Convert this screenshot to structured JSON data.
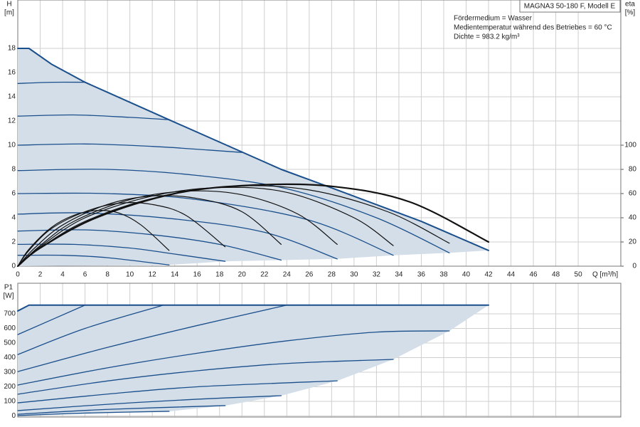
{
  "chart_data": [
    {
      "type": "line",
      "title": "MAGNA3 50-180 F, Modell E",
      "annotations": [
        "Fördermedium = Wasser",
        "Medientemperatur während des Betriebes = 60 °C",
        "Dichte = 983.2 kg/m³"
      ],
      "xlabel": "Q [m³/h]",
      "ylabel": "H",
      "yunit": "[m]",
      "y2label": "eta",
      "y2unit": "[%]",
      "xlim": [
        0,
        53.8
      ],
      "xticks": [
        0,
        2,
        4,
        6,
        8,
        10,
        12,
        14,
        16,
        18,
        20,
        22,
        24,
        26,
        28,
        30,
        32,
        34,
        36,
        38,
        40,
        42,
        44,
        46,
        48,
        50
      ],
      "ylim": [
        0,
        22
      ],
      "yticks": [
        0,
        2,
        4,
        6,
        8,
        10,
        12,
        14,
        16,
        18
      ],
      "y2lim": [
        0,
        220
      ],
      "y2ticks": [
        0,
        20,
        40,
        60,
        80,
        100
      ],
      "grid": true,
      "area_color": "#d4dee9",
      "area": {
        "x": [
          0,
          13.5,
          18.5,
          23.5,
          28.5,
          33.5,
          38.5,
          42
        ],
        "lower": [
          0,
          0.1,
          0.4,
          0.5,
          0.6,
          0.9,
          1.1,
          1.3
        ]
      },
      "series": [
        {
          "color": "#1a4f8b",
          "width": 2,
          "smooth": false,
          "x": [
            0,
            1,
            3,
            6,
            13.5,
            23.5,
            28.5,
            36,
            42
          ],
          "values": [
            18,
            18,
            16.7,
            15.2,
            12.1,
            8.0,
            6.3,
            3.7,
            1.3
          ]
        },
        {
          "color": "#1a4f8b",
          "width": 1.3,
          "smooth": true,
          "x": [
            0,
            3,
            6
          ],
          "values": [
            15.1,
            15.2,
            15.2
          ]
        },
        {
          "color": "#1a4f8b",
          "width": 1.3,
          "smooth": true,
          "x": [
            0,
            5,
            10,
            13.5
          ],
          "values": [
            12.4,
            12.5,
            12.3,
            12.1
          ]
        },
        {
          "color": "#1a4f8b",
          "width": 1.3,
          "smooth": true,
          "x": [
            0,
            6,
            12,
            17,
            20
          ],
          "values": [
            10,
            10.1,
            9.9,
            9.6,
            9.4
          ]
        },
        {
          "color": "#1a4f8b",
          "width": 1.3,
          "smooth": true,
          "x": [
            0,
            8,
            16,
            24,
            32,
            38.5
          ],
          "values": [
            7.9,
            8.0,
            7.5,
            6.4,
            4.0,
            1.1
          ]
        },
        {
          "color": "#1a4f8b",
          "width": 1.3,
          "smooth": true,
          "x": [
            0,
            8,
            16,
            26,
            33.5
          ],
          "values": [
            6.0,
            6.0,
            5.5,
            3.8,
            0.9
          ]
        },
        {
          "color": "#1a4f8b",
          "width": 1.3,
          "smooth": true,
          "x": [
            0,
            6,
            14,
            22,
            28.5
          ],
          "values": [
            4.3,
            4.4,
            3.9,
            2.8,
            0.6
          ]
        },
        {
          "color": "#1a4f8b",
          "width": 1.3,
          "smooth": true,
          "x": [
            0,
            6,
            12,
            18,
            23.5
          ],
          "values": [
            2.9,
            3.0,
            2.6,
            1.8,
            0.5
          ]
        },
        {
          "color": "#1a4f8b",
          "width": 1.3,
          "smooth": true,
          "x": [
            0,
            5,
            10,
            14,
            18.5
          ],
          "values": [
            1.8,
            1.8,
            1.5,
            1.0,
            0.4
          ]
        },
        {
          "color": "#1a4f8b",
          "width": 1.3,
          "smooth": true,
          "x": [
            0,
            4,
            8,
            13.5
          ],
          "values": [
            0.9,
            0.9,
            0.7,
            0.1
          ]
        },
        {
          "color": "#111111",
          "width": 1.2,
          "smooth": true,
          "axis": "y2",
          "x": [
            0,
            1,
            3,
            5,
            7,
            9,
            11,
            13.5
          ],
          "values": [
            0,
            14,
            32,
            42,
            46,
            44,
            34,
            13
          ]
        },
        {
          "color": "#111111",
          "width": 1.2,
          "smooth": true,
          "axis": "y2",
          "x": [
            0,
            1,
            3,
            6,
            9,
            12,
            15,
            18.5
          ],
          "values": [
            0,
            13,
            31,
            45,
            52,
            51,
            42,
            16
          ]
        },
        {
          "color": "#111111",
          "width": 1.2,
          "smooth": true,
          "axis": "y2",
          "x": [
            0,
            1.5,
            4,
            8,
            12,
            16,
            20,
            23.5
          ],
          "values": [
            0,
            15,
            34,
            51,
            58,
            56,
            45,
            18
          ]
        },
        {
          "color": "#111111",
          "width": 1.2,
          "smooth": true,
          "axis": "y2",
          "x": [
            0,
            2,
            5,
            10,
            15,
            20,
            25,
            28.5
          ],
          "values": [
            0,
            17,
            37,
            55,
            62,
            59,
            43,
            18
          ]
        },
        {
          "color": "#111111",
          "width": 1.2,
          "smooth": true,
          "axis": "y2",
          "x": [
            0,
            2,
            6,
            12,
            18,
            24,
            30,
            33.5
          ],
          "values": [
            0,
            16,
            40,
            58,
            65,
            61,
            40,
            17
          ]
        },
        {
          "color": "#111111",
          "width": 1.2,
          "smooth": true,
          "axis": "y2",
          "x": [
            0,
            2,
            6,
            12,
            19,
            26,
            33,
            38.5
          ],
          "values": [
            0,
            15,
            37,
            56,
            66,
            63,
            45,
            19
          ]
        },
        {
          "color": "#111111",
          "width": 2.2,
          "smooth": true,
          "axis": "y2",
          "x": [
            0,
            2,
            7,
            14,
            21,
            28,
            35,
            42
          ],
          "values": [
            0,
            15,
            40,
            60,
            67,
            66,
            53,
            20
          ]
        }
      ]
    },
    {
      "type": "line",
      "ylabel": "P1",
      "yunit": "[W]",
      "xlim": [
        0,
        53.8
      ],
      "ylim": [
        0,
        910
      ],
      "yticks": [
        0,
        100,
        200,
        300,
        400,
        500,
        600,
        700
      ],
      "grid": true,
      "area_color": "#d4dee9",
      "area": {
        "x": [
          0,
          13.5,
          18.5,
          23.5,
          28.5,
          33.5,
          38.5,
          42
        ],
        "lower": [
          0,
          32,
          71,
          139,
          241,
          388,
          583,
          760
        ]
      },
      "series": [
        {
          "color": "#1a4f8b",
          "width": 2,
          "smooth": false,
          "x": [
            0,
            1,
            42
          ],
          "values": [
            720,
            760,
            760
          ]
        },
        {
          "color": "#1a4f8b",
          "width": 1.3,
          "smooth": true,
          "x": [
            0,
            6
          ],
          "values": [
            558,
            760
          ]
        },
        {
          "color": "#1a4f8b",
          "width": 1.3,
          "smooth": true,
          "x": [
            0,
            6,
            13
          ],
          "values": [
            421,
            600,
            760
          ]
        },
        {
          "color": "#1a4f8b",
          "width": 1.3,
          "smooth": true,
          "x": [
            0,
            8,
            16,
            24
          ],
          "values": [
            304,
            470,
            620,
            760
          ]
        },
        {
          "color": "#1a4f8b",
          "width": 1.3,
          "smooth": true,
          "x": [
            0,
            8,
            16,
            24,
            32,
            38.5
          ],
          "values": [
            212,
            330,
            430,
            515,
            575,
            583
          ]
        },
        {
          "color": "#1a4f8b",
          "width": 1.3,
          "smooth": true,
          "x": [
            0,
            8,
            16,
            24,
            33.5
          ],
          "values": [
            149,
            240,
            310,
            360,
            388
          ]
        },
        {
          "color": "#1a4f8b",
          "width": 1.3,
          "smooth": true,
          "x": [
            0,
            8,
            16,
            28.5
          ],
          "values": [
            90,
            150,
            200,
            241
          ]
        },
        {
          "color": "#1a4f8b",
          "width": 1.3,
          "smooth": true,
          "x": [
            0,
            8,
            16,
            23.5
          ],
          "values": [
            37,
            80,
            115,
            139
          ]
        },
        {
          "color": "#1a4f8b",
          "width": 1.3,
          "smooth": true,
          "x": [
            0,
            8,
            18.5
          ],
          "values": [
            12,
            45,
            71
          ]
        },
        {
          "color": "#1a4f8b",
          "width": 1.3,
          "smooth": true,
          "x": [
            0,
            6,
            13.5
          ],
          "values": [
            3,
            20,
            32
          ]
        }
      ]
    }
  ]
}
